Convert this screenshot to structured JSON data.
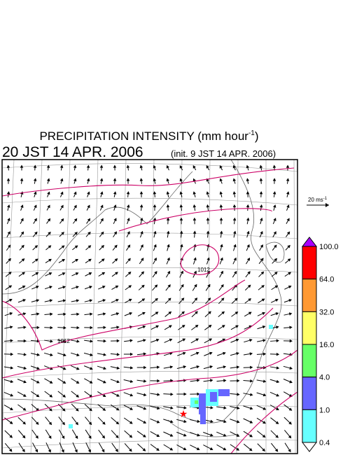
{
  "header": {
    "title": {
      "text": "PRECIPITATION INTENSITY (mm hour",
      "superscript": "-1",
      "close": ")"
    },
    "time": "20 JST 14 APR. 2006",
    "init": "(init. 9 JST 14 APR. 2006)"
  },
  "wind_scale": {
    "text": "20 ms",
    "superscript": "-1"
  },
  "contour_labels": [
    "1012",
    "1012"
  ],
  "colorbar": {
    "labels": [
      "100.0",
      "64.0",
      "32.0",
      "16.0",
      "4.0",
      "1.0",
      "0.4"
    ],
    "colors": [
      "#ff0000",
      "#ff9933",
      "#ffff66",
      "#66ff66",
      "#6666ff",
      "#66ffff"
    ],
    "over_color": "#aa00ff",
    "under_color": "#ffffff"
  }
}
